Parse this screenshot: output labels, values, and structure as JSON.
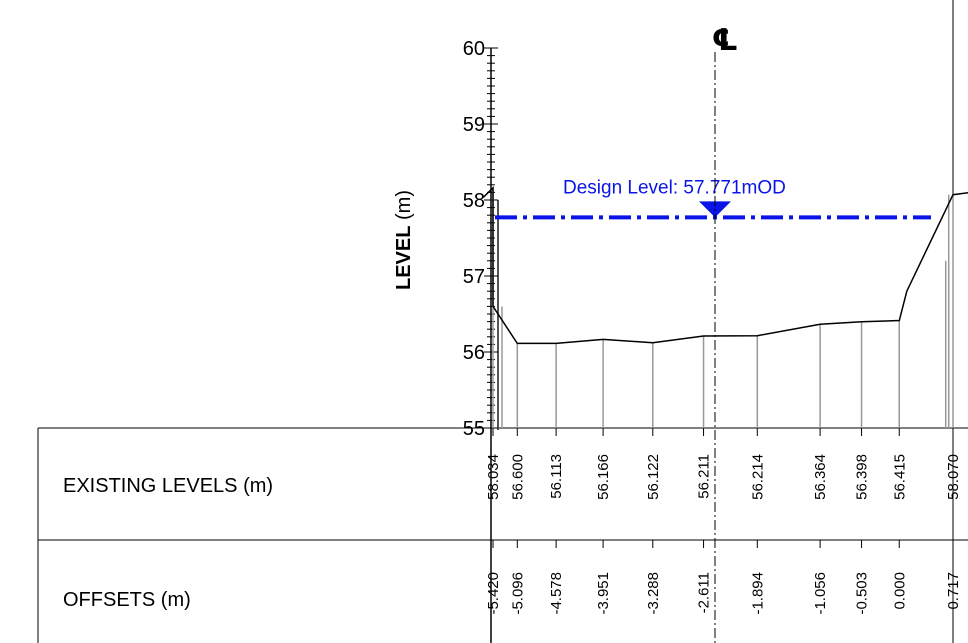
{
  "chart_data": {
    "type": "line",
    "title": "",
    "ylabel_bold": "LEVEL",
    "ylabel_unit": "(m)",
    "y_ticks": [
      "60",
      "59",
      "58",
      "57",
      "56",
      "55"
    ],
    "ylim": [
      55,
      60
    ],
    "centerline_symbol": "℄",
    "design_level_label": "Design Level: 57.771mOD",
    "design_level_value": 57.771,
    "design_color": "#0a14e6",
    "profile": [
      {
        "offset": -5.55,
        "level": 58.034
      },
      {
        "offset": -5.42,
        "level": 58.16
      },
      {
        "offset": -5.42,
        "level": 56.6
      },
      {
        "offset": -5.096,
        "level": 56.113
      },
      {
        "offset": -4.578,
        "level": 56.113
      },
      {
        "offset": -3.951,
        "level": 56.166
      },
      {
        "offset": -3.288,
        "level": 56.122
      },
      {
        "offset": -2.611,
        "level": 56.211
      },
      {
        "offset": -1.894,
        "level": 56.214
      },
      {
        "offset": -1.056,
        "level": 56.364
      },
      {
        "offset": -0.503,
        "level": 56.398
      },
      {
        "offset": 0.0,
        "level": 56.415
      },
      {
        "offset": 0.1,
        "level": 56.8
      },
      {
        "offset": 0.717,
        "level": 58.07
      },
      {
        "offset": 0.95,
        "level": 58.1
      }
    ],
    "stations": [
      {
        "offset_label": "-5.420",
        "level_label": "58.034",
        "offset": -5.42
      },
      {
        "offset_label": "-5.096",
        "level_label": "56.600",
        "offset": -5.096
      },
      {
        "offset_label": "-4.578",
        "level_label": "56.113",
        "offset": -4.578
      },
      {
        "offset_label": "-3.951",
        "level_label": "56.166",
        "offset": -3.951
      },
      {
        "offset_label": "-3.288",
        "level_label": "56.122",
        "offset": -3.288
      },
      {
        "offset_label": "-2.611",
        "level_label": "56.211",
        "offset": -2.611
      },
      {
        "offset_label": "-1.894",
        "level_label": "56.214",
        "offset": -1.894
      },
      {
        "offset_label": "-1.056",
        "level_label": "56.364",
        "offset": -1.056
      },
      {
        "offset_label": "-0.503",
        "level_label": "56.398",
        "offset": -0.503
      },
      {
        "offset_label": "0.000",
        "level_label": "56.415",
        "offset": 0.0
      },
      {
        "offset_label": "0.717",
        "level_label": "58.070",
        "offset": 0.717
      }
    ]
  },
  "table": {
    "row1_label": "EXISTING LEVELS (m)",
    "row2_label": "OFFSETS (m)"
  }
}
